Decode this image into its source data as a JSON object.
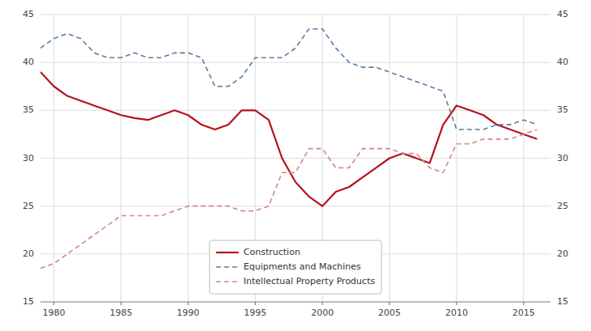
{
  "chart_data": {
    "type": "line",
    "x": [
      1979,
      1980,
      1981,
      1982,
      1983,
      1984,
      1985,
      1986,
      1987,
      1988,
      1989,
      1990,
      1991,
      1992,
      1993,
      1994,
      1995,
      1996,
      1997,
      1998,
      1999,
      2000,
      2001,
      2002,
      2003,
      2004,
      2005,
      2006,
      2007,
      2008,
      2009,
      2010,
      2011,
      2012,
      2013,
      2014,
      2015,
      2016
    ],
    "series": [
      {
        "name": "Construction",
        "color": "#b5121b",
        "line_style": "solid",
        "values": [
          39.0,
          37.5,
          36.5,
          36.0,
          35.5,
          35.0,
          34.5,
          34.2,
          34.0,
          34.5,
          35.0,
          34.5,
          33.5,
          33.0,
          33.5,
          35.0,
          35.0,
          34.0,
          30.0,
          27.5,
          26.0,
          25.0,
          26.5,
          27.0,
          28.0,
          29.0,
          30.0,
          30.5,
          30.0,
          29.5,
          33.5,
          35.5,
          35.0,
          34.5,
          33.5,
          33.0,
          32.5,
          32.0
        ]
      },
      {
        "name": "Equipments and Machines",
        "color": "#5a7fa0",
        "line_style": "dashed",
        "values": [
          41.5,
          42.5,
          43.0,
          42.5,
          41.0,
          40.5,
          40.5,
          41.0,
          40.5,
          40.5,
          41.0,
          41.0,
          40.5,
          37.5,
          37.5,
          38.5,
          40.5,
          40.5,
          40.5,
          41.5,
          43.5,
          43.5,
          41.5,
          40.0,
          39.5,
          39.5,
          39.0,
          38.5,
          38.0,
          37.5,
          37.0,
          33.0,
          33.0,
          33.0,
          33.5,
          33.5,
          34.0,
          33.5
        ]
      },
      {
        "name": "Intellectual Property Products",
        "color": "#d4849a",
        "line_style": "dashed",
        "values": [
          18.5,
          19.0,
          20.0,
          21.0,
          22.0,
          23.0,
          24.0,
          24.0,
          24.0,
          24.0,
          24.5,
          25.0,
          25.0,
          25.0,
          25.0,
          24.5,
          24.5,
          25.0,
          28.5,
          28.5,
          31.0,
          31.0,
          29.0,
          29.0,
          31.0,
          31.0,
          31.0,
          30.5,
          30.5,
          29.0,
          28.5,
          31.5,
          31.5,
          32.0,
          32.0,
          32.0,
          32.5,
          33.0
        ]
      }
    ],
    "xlim": [
      1979,
      2017
    ],
    "xticks": [
      1980,
      1985,
      1990,
      1995,
      2000,
      2005,
      2010,
      2015
    ],
    "ylim": [
      15,
      45
    ],
    "yticks": [
      15,
      20,
      25,
      30,
      35,
      40,
      45
    ],
    "y2lim": [
      15,
      45
    ],
    "y2ticks": [
      15,
      20,
      25,
      30,
      35,
      40,
      45
    ],
    "grid": true,
    "legend": "lower center"
  }
}
